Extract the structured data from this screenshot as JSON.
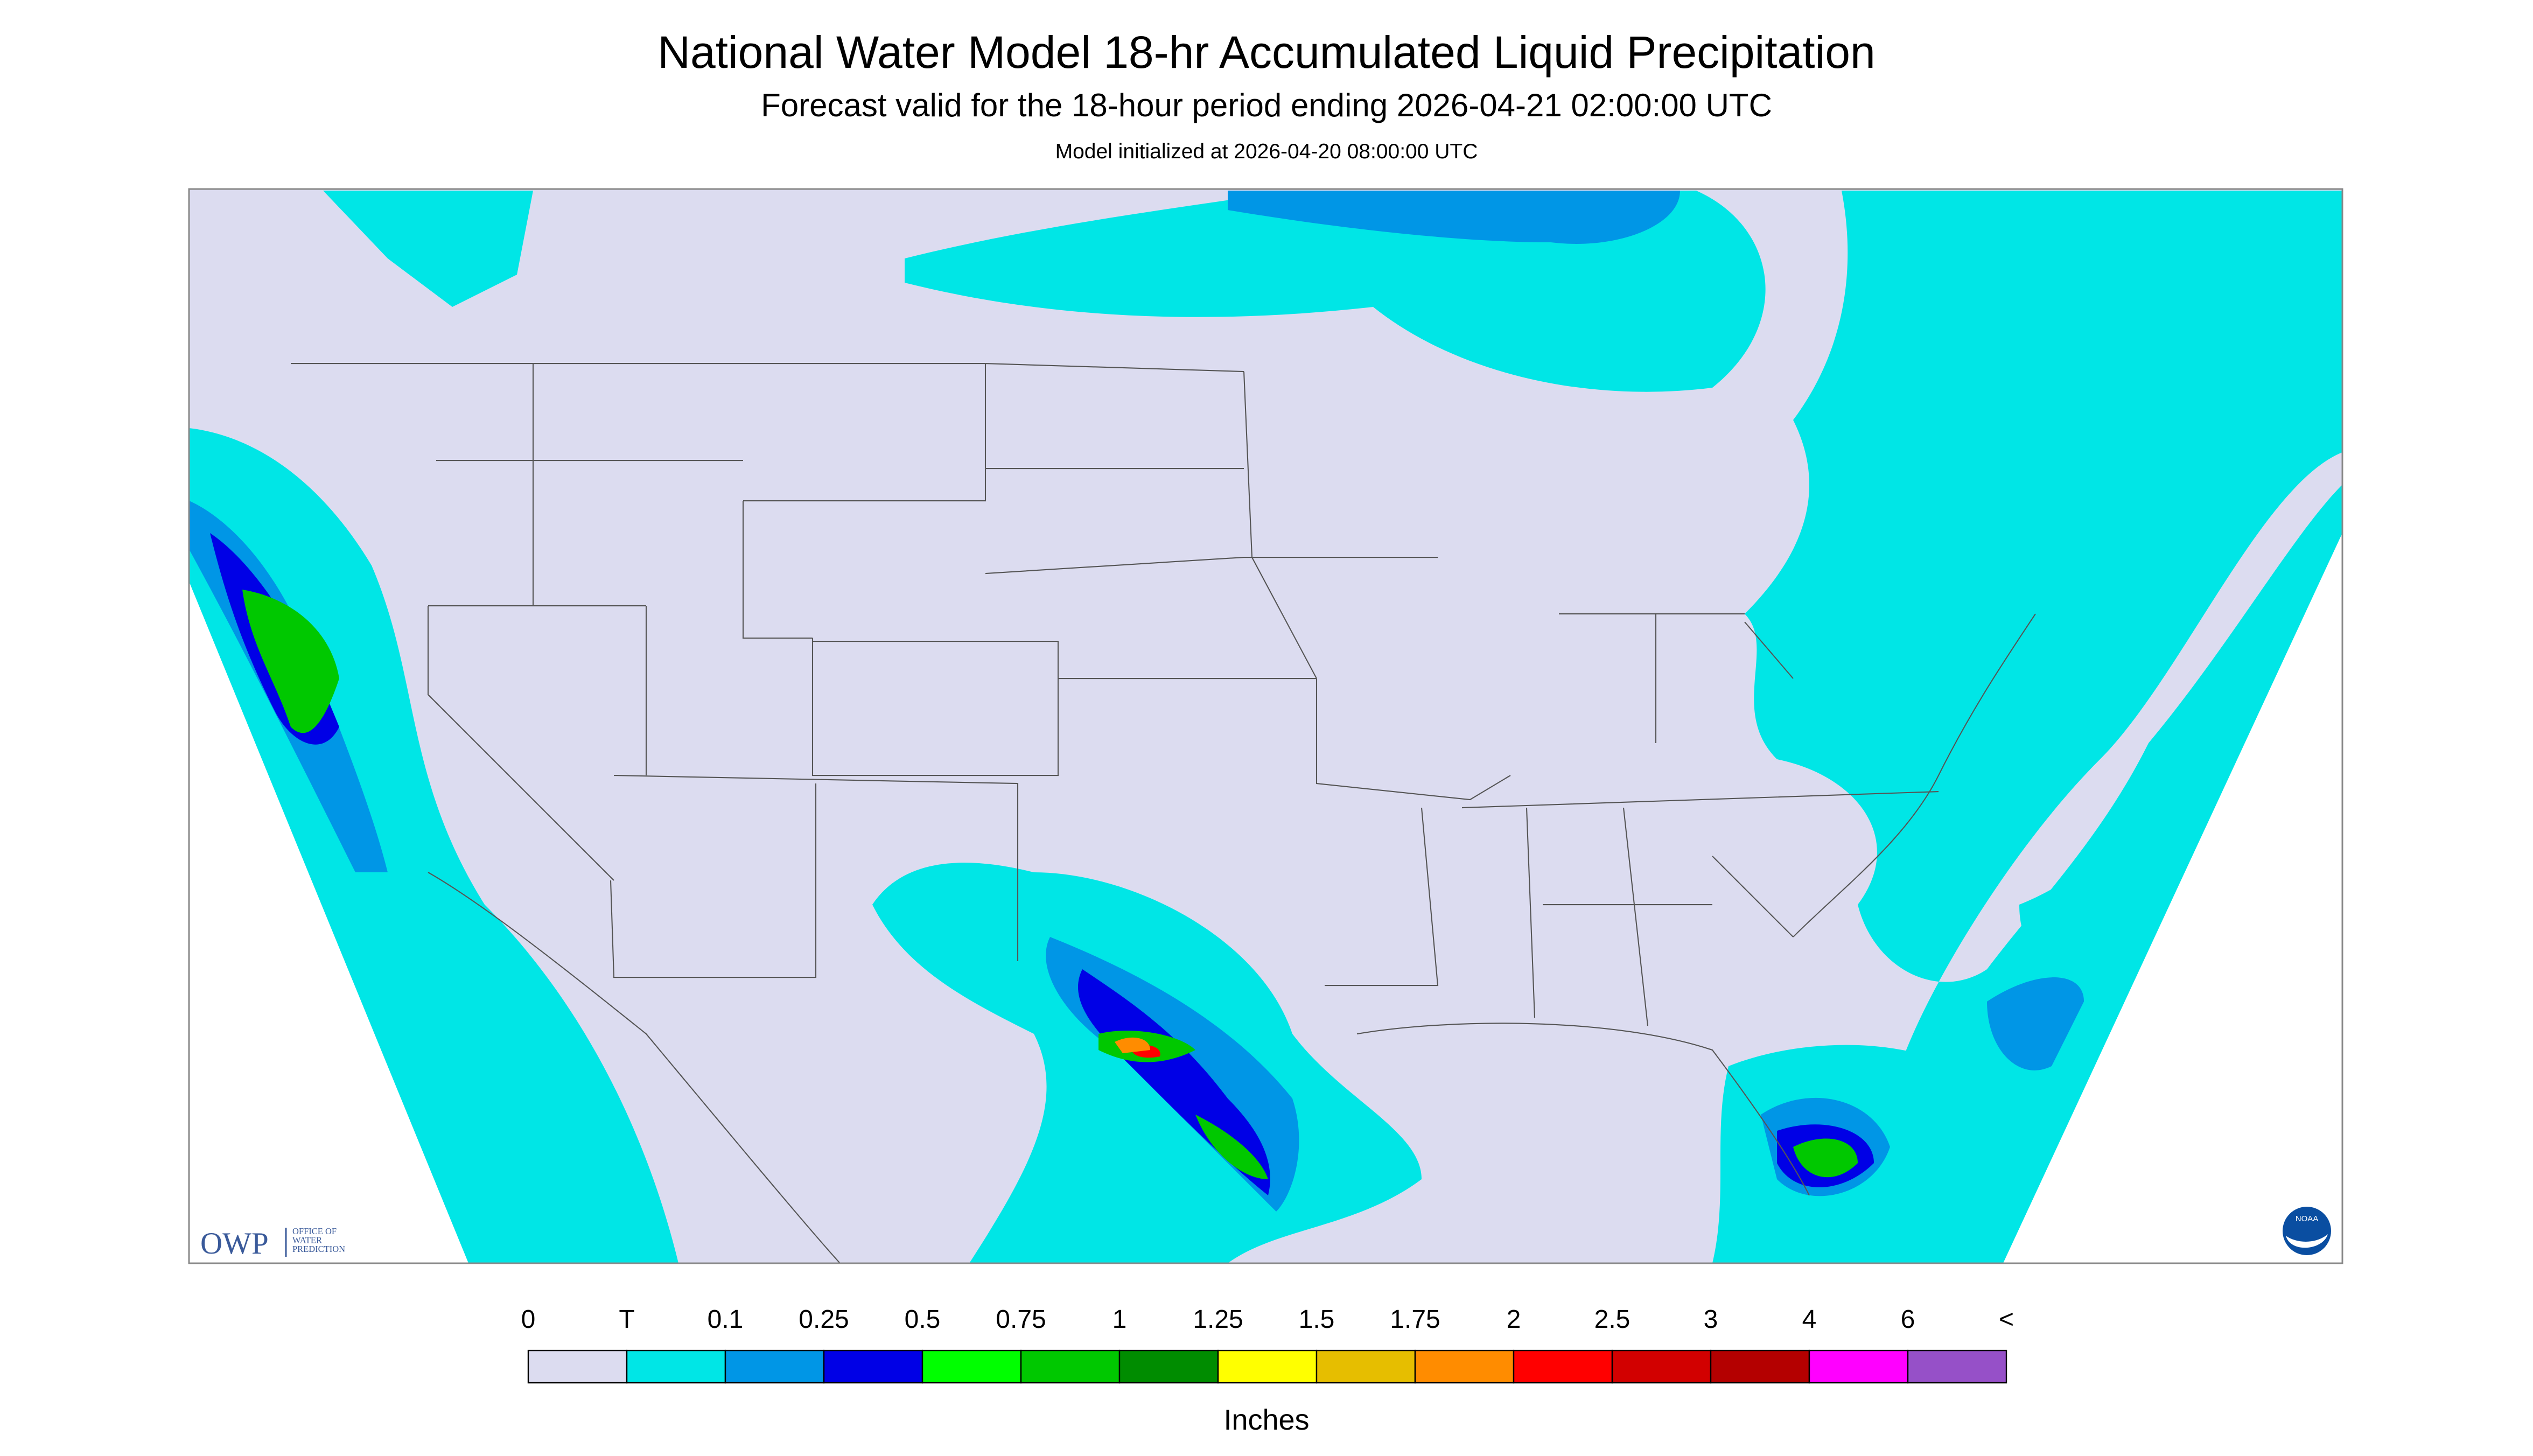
{
  "header": {
    "title": "National Water Model 18-hr Accumulated Liquid Precipitation",
    "subtitle": "Forecast valid for the 18-hour period ending 2026-04-21 02:00:00 UTC",
    "note": "Model initialized at 2026-04-20 08:00:00 UTC"
  },
  "logos": {
    "owp": "OWP",
    "owp_lines": [
      "OFFICE OF",
      "WATER",
      "PREDICTION"
    ],
    "noaa": "NOAA"
  },
  "colorbar": {
    "labels": [
      "0",
      "T",
      "0.1",
      "0.25",
      "0.5",
      "0.75",
      "1",
      "1.25",
      "1.5",
      "1.75",
      "2",
      "2.5",
      "3",
      "4",
      "6",
      "<"
    ],
    "colors": [
      "#dcdcf0",
      "#00e6e6",
      "#0096e6",
      "#0000e6",
      "#00ff00",
      "#00c800",
      "#008c00",
      "#ffff00",
      "#e6be00",
      "#ff8c00",
      "#ff0000",
      "#d20000",
      "#b40000",
      "#ff00ff",
      "#9650c8"
    ],
    "unit": "Inches"
  }
}
